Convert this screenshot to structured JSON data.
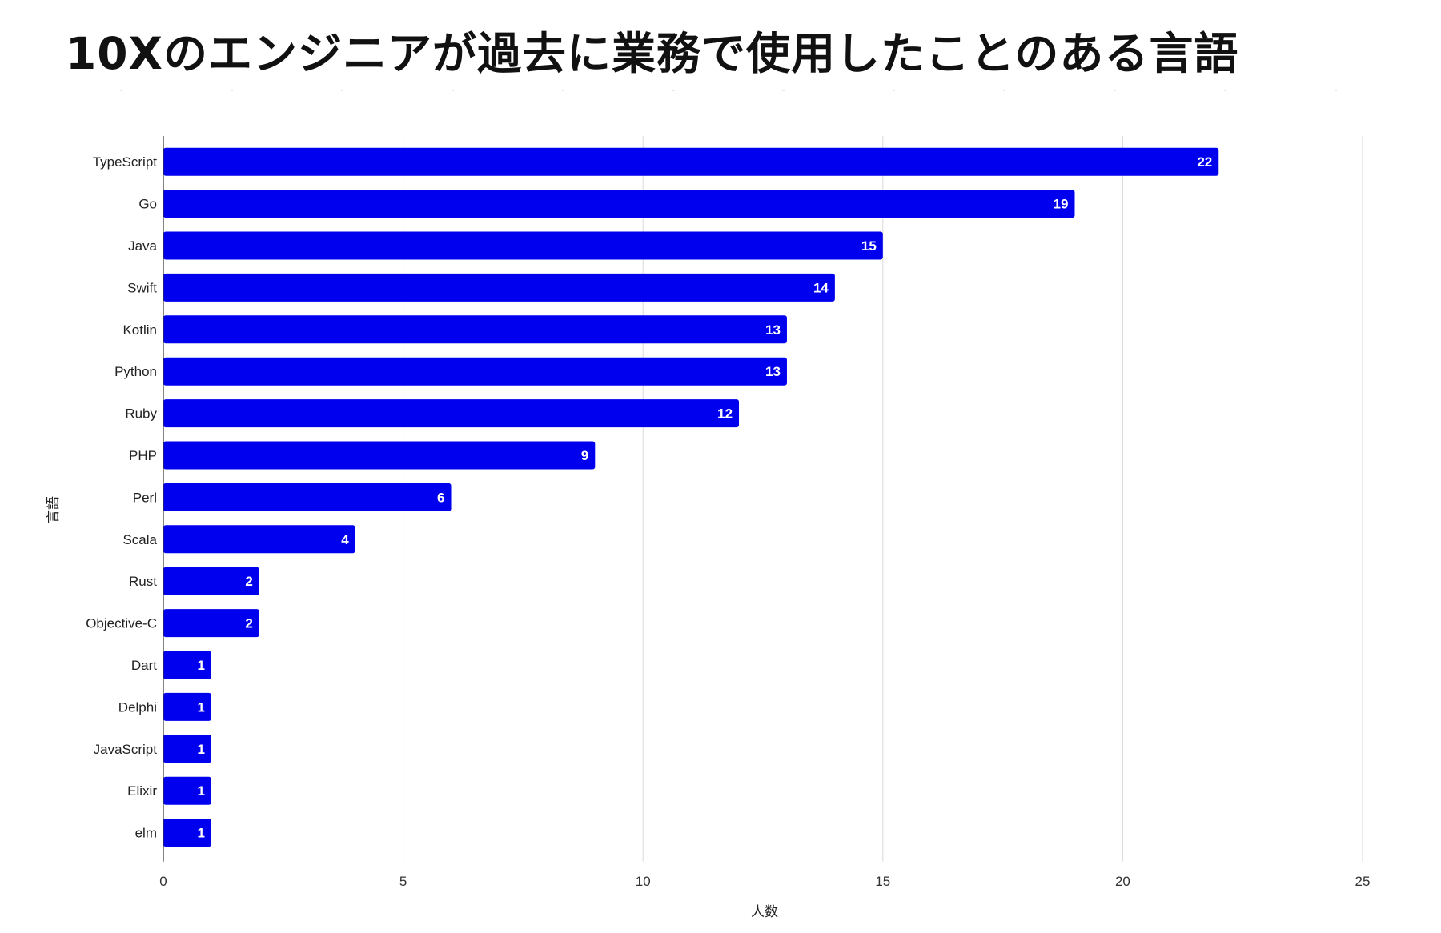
{
  "title": "10Xのエンジニアが過去に業務で使用したことのある言語",
  "chart_data": {
    "type": "bar",
    "orientation": "horizontal",
    "categories": [
      "TypeScript",
      "Go",
      "Java",
      "Swift",
      "Kotlin",
      "Python",
      "Ruby",
      "PHP",
      "Perl",
      "Scala",
      "Rust",
      "Objective-C",
      "Dart",
      "Delphi",
      "JavaScript",
      "Elixir",
      "elm"
    ],
    "values": [
      22,
      19,
      15,
      14,
      13,
      13,
      12,
      9,
      6,
      4,
      2,
      2,
      1,
      1,
      1,
      1,
      1
    ],
    "xlabel": "人数",
    "ylabel": "言語",
    "xlim": [
      0,
      25
    ],
    "xticks": [
      0,
      5,
      10,
      15,
      20,
      25
    ],
    "data_labels": true,
    "grid": "vertical",
    "legend": "none",
    "bar_color": "#0000ee",
    "label_color": "#ffffff",
    "grid_color": "#d9d9d9"
  }
}
